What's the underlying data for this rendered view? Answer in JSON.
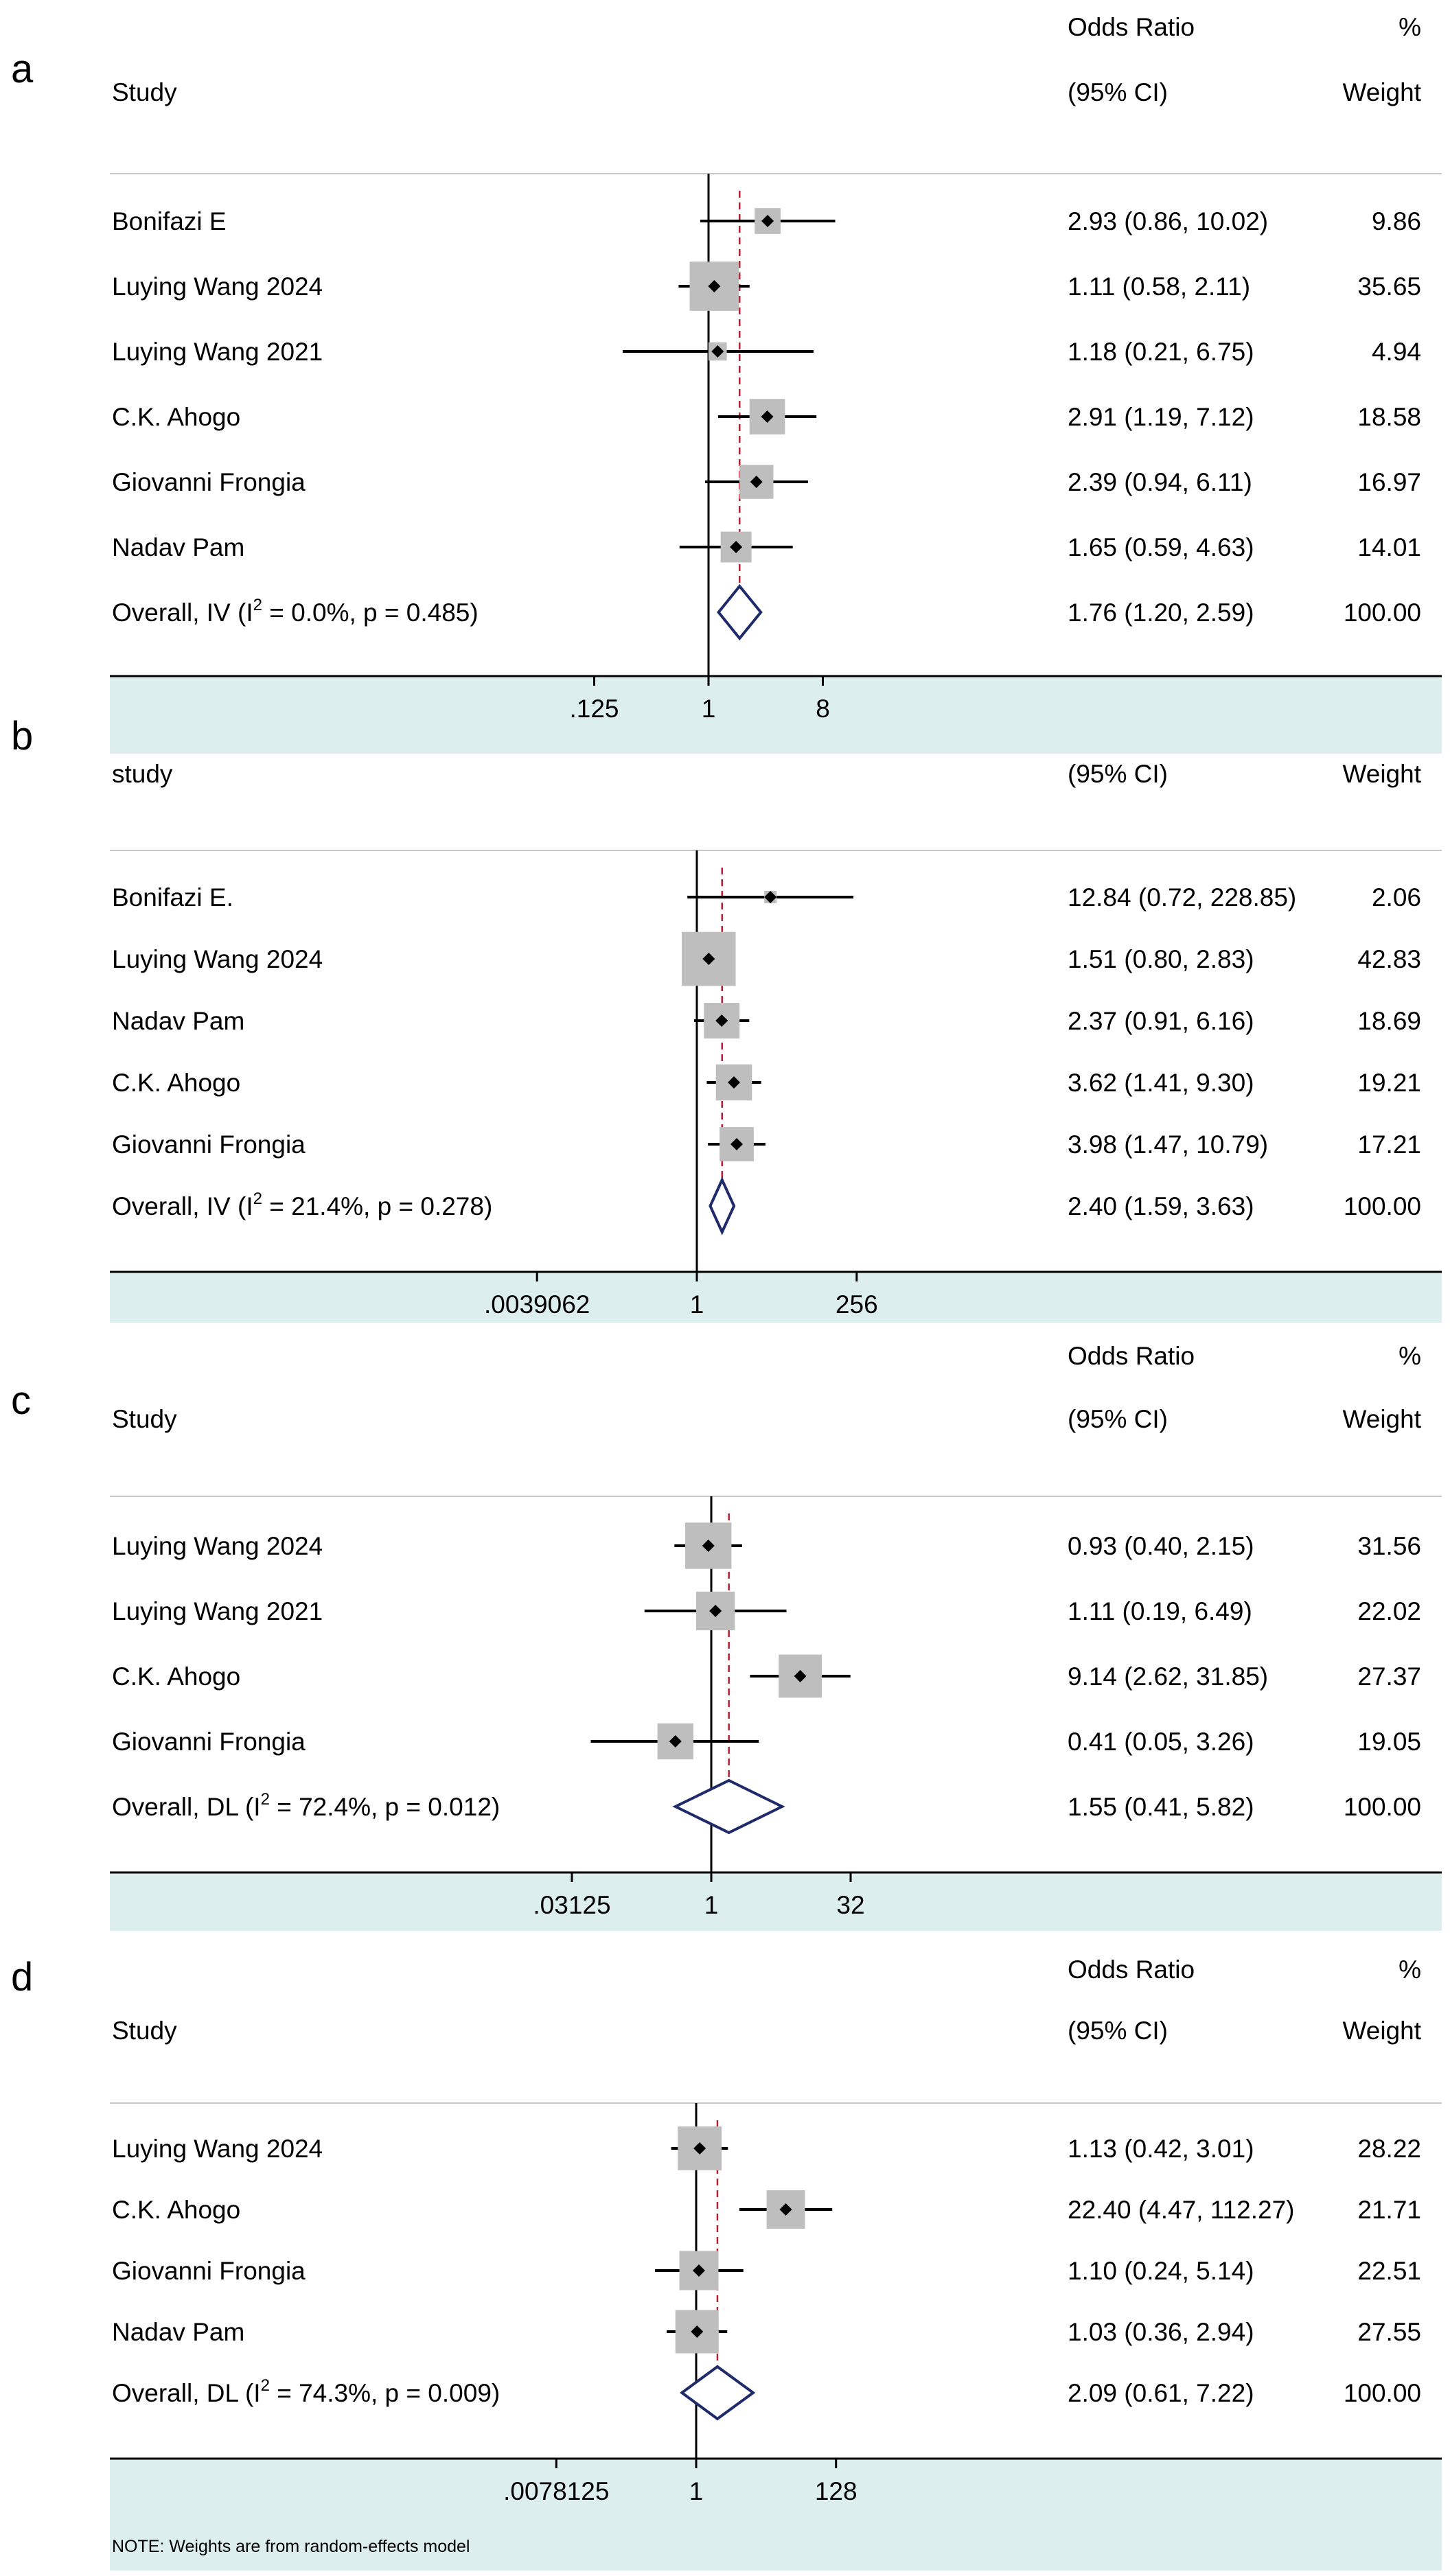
{
  "figure": {
    "note": "NOTE: Weights are from random-effects model",
    "ref_line_color": "#000000",
    "overall_line_color": "#b22234",
    "diamond_color": "#1f2a6b",
    "weight_box_color": "#bebebe",
    "axis_band_color": "#ddeeee"
  },
  "chart_data": [
    {
      "type": "forest",
      "panel": "a",
      "header": {
        "effect_top": "Odds Ratio",
        "weight_top": "%",
        "study": "Study",
        "effect": "(95% CI)",
        "weight": "Weight"
      },
      "scale": "log2",
      "xlim_log2": [
        -4,
        4
      ],
      "xticks": [
        ".125",
        "1",
        "8"
      ],
      "xtick_values": [
        0.125,
        1,
        8
      ],
      "overall_line_or": 1.76,
      "studies": [
        {
          "name": "Bonifazi E",
          "or": 2.93,
          "lo": 0.86,
          "hi": 10.02,
          "ci_text": "2.93 (0.86, 10.02)",
          "weight": 9.86,
          "weight_text": "9.86"
        },
        {
          "name": "Luying Wang 2024",
          "or": 1.11,
          "lo": 0.58,
          "hi": 2.11,
          "ci_text": "1.11 (0.58, 2.11)",
          "weight": 35.65,
          "weight_text": "35.65"
        },
        {
          "name": "Luying Wang 2021",
          "or": 1.18,
          "lo": 0.21,
          "hi": 6.75,
          "ci_text": "1.18 (0.21, 6.75)",
          "weight": 4.94,
          "weight_text": "4.94"
        },
        {
          "name": "C.K. Ahogo",
          "or": 2.91,
          "lo": 1.19,
          "hi": 7.12,
          "ci_text": "2.91 (1.19, 7.12)",
          "weight": 18.58,
          "weight_text": "18.58"
        },
        {
          "name": "Giovanni Frongia",
          "or": 2.39,
          "lo": 0.94,
          "hi": 6.11,
          "ci_text": "2.39 (0.94, 6.11)",
          "weight": 16.97,
          "weight_text": "16.97"
        },
        {
          "name": "Nadav Pam",
          "or": 1.65,
          "lo": 0.59,
          "hi": 4.63,
          "ci_text": "1.65 (0.59, 4.63)",
          "weight": 14.01,
          "weight_text": "14.01"
        }
      ],
      "overall": {
        "label_pre": "Overall, IV (I",
        "label_sup": "2",
        "label_post": " = 0.0%, p = 0.485)",
        "or": 1.76,
        "lo": 1.2,
        "hi": 2.59,
        "ci_text": "1.76 (1.20, 2.59)",
        "weight_text": "100.00"
      }
    },
    {
      "type": "forest",
      "panel": "b",
      "header": {
        "study": "study",
        "effect": "(95% CI)",
        "weight": "Weight"
      },
      "scale": "log2",
      "xlim_log2": [
        -9.2,
        8.1
      ],
      "xticks": [
        ".0039062",
        "1",
        "256"
      ],
      "xtick_values": [
        0.0039062,
        1,
        256
      ],
      "overall_line_or": 2.4,
      "studies": [
        {
          "name": "Bonifazi E.",
          "or": 12.84,
          "lo": 0.72,
          "hi": 228.85,
          "ci_text": "12.84 (0.72, 228.85)",
          "weight": 2.06,
          "weight_text": "2.06"
        },
        {
          "name": "Luying Wang 2024",
          "or": 1.51,
          "lo": 0.8,
          "hi": 2.83,
          "ci_text": "1.51 (0.80, 2.83)",
          "weight": 42.83,
          "weight_text": "42.83"
        },
        {
          "name": "Nadav Pam",
          "or": 2.37,
          "lo": 0.91,
          "hi": 6.16,
          "ci_text": "2.37 (0.91, 6.16)",
          "weight": 18.69,
          "weight_text": "18.69"
        },
        {
          "name": "C.K. Ahogo",
          "or": 3.62,
          "lo": 1.41,
          "hi": 9.3,
          "ci_text": "3.62 (1.41, 9.30)",
          "weight": 19.21,
          "weight_text": "19.21"
        },
        {
          "name": "Giovanni Frongia",
          "or": 3.98,
          "lo": 1.47,
          "hi": 10.79,
          "ci_text": "3.98 (1.47, 10.79)",
          "weight": 17.21,
          "weight_text": "17.21"
        }
      ],
      "overall": {
        "label_pre": "Overall, IV (I",
        "label_sup": "2",
        "label_post": " = 21.4%, p = 0.278)",
        "or": 2.4,
        "lo": 1.59,
        "hi": 3.63,
        "ci_text": "2.40 (1.59, 3.63)",
        "weight_text": "100.00"
      }
    },
    {
      "type": "forest",
      "panel": "c",
      "header": {
        "effect_top": "Odds Ratio",
        "weight_top": "%",
        "study": "Study",
        "effect": "(95% CI)",
        "weight": "Weight"
      },
      "scale": "log2",
      "xlim_log2": [
        -6.1,
        5.8
      ],
      "xticks": [
        ".03125",
        "1",
        "32"
      ],
      "xtick_values": [
        0.03125,
        1,
        32
      ],
      "overall_line_or": 1.55,
      "studies": [
        {
          "name": "Luying Wang 2024",
          "or": 0.93,
          "lo": 0.4,
          "hi": 2.15,
          "ci_text": "0.93 (0.40, 2.15)",
          "weight": 31.56,
          "weight_text": "31.56"
        },
        {
          "name": "Luying Wang 2021",
          "or": 1.11,
          "lo": 0.19,
          "hi": 6.49,
          "ci_text": "1.11 (0.19, 6.49)",
          "weight": 22.02,
          "weight_text": "22.02"
        },
        {
          "name": "C.K. Ahogo",
          "or": 9.14,
          "lo": 2.62,
          "hi": 31.85,
          "ci_text": "9.14 (2.62, 31.85)",
          "weight": 27.37,
          "weight_text": "27.37"
        },
        {
          "name": "Giovanni Frongia",
          "or": 0.41,
          "lo": 0.05,
          "hi": 3.26,
          "ci_text": "0.41 (0.05, 3.26)",
          "weight": 19.05,
          "weight_text": "19.05"
        }
      ],
      "overall": {
        "label_pre": "Overall, DL (I",
        "label_sup": "2",
        "label_post": " = 72.4%, p = 0.012)",
        "or": 1.55,
        "lo": 0.41,
        "hi": 5.82,
        "ci_text": "1.55 (0.41, 5.82)",
        "weight_text": "100.00"
      }
    },
    {
      "type": "forest",
      "panel": "d",
      "header": {
        "effect_top": "Odds Ratio",
        "weight_top": "%",
        "study": "Study",
        "effect": "(95% CI)",
        "weight": "Weight"
      },
      "scale": "log2",
      "xlim_log2": [
        -8.1,
        8.0
      ],
      "xticks": [
        ".0078125",
        "1",
        "128"
      ],
      "xtick_values": [
        0.0078125,
        1,
        128
      ],
      "overall_line_or": 2.09,
      "studies": [
        {
          "name": "Luying Wang 2024",
          "or": 1.13,
          "lo": 0.42,
          "hi": 3.01,
          "ci_text": "1.13 (0.42, 3.01)",
          "weight": 28.22,
          "weight_text": "28.22"
        },
        {
          "name": "C.K. Ahogo",
          "or": 22.4,
          "lo": 4.47,
          "hi": 112.27,
          "ci_text": "22.40 (4.47, 112.27)",
          "weight": 21.71,
          "weight_text": "21.71"
        },
        {
          "name": "Giovanni Frongia",
          "or": 1.1,
          "lo": 0.24,
          "hi": 5.14,
          "ci_text": "1.10 (0.24, 5.14)",
          "weight": 22.51,
          "weight_text": "22.51"
        },
        {
          "name": "Nadav Pam",
          "or": 1.03,
          "lo": 0.36,
          "hi": 2.94,
          "ci_text": "1.03 (0.36, 2.94)",
          "weight": 27.55,
          "weight_text": "27.55"
        }
      ],
      "overall": {
        "label_pre": "Overall, DL (I",
        "label_sup": "2",
        "label_post": " = 74.3%, p = 0.009)",
        "or": 2.09,
        "lo": 0.61,
        "hi": 7.22,
        "ci_text": "2.09 (0.61, 7.22)",
        "weight_text": "100.00"
      }
    }
  ]
}
